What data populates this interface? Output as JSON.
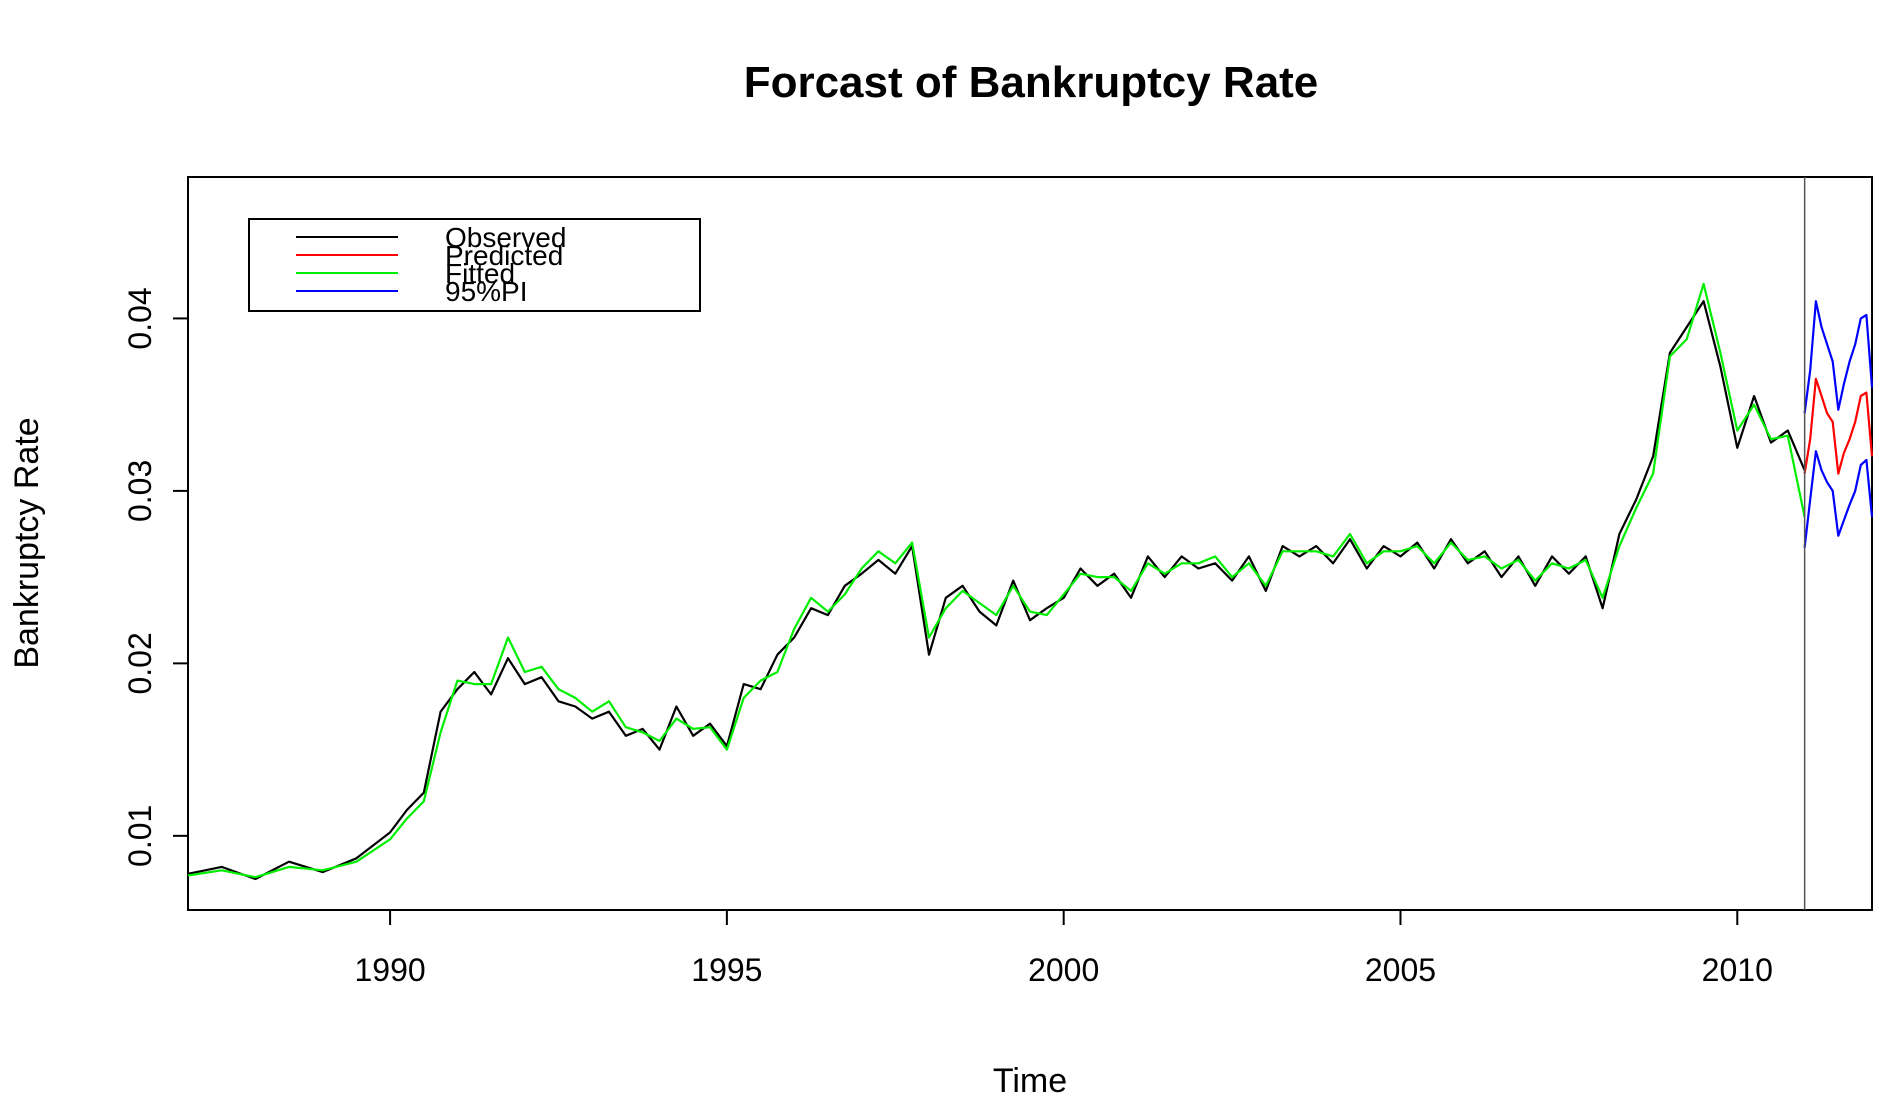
{
  "chart_data": {
    "type": "line",
    "title": "Forcast of Bankruptcy Rate",
    "xlabel": "Time",
    "ylabel": "Bankruptcy Rate",
    "xlim": [
      1987.0,
      2012.0
    ],
    "ylim": [
      0.0057,
      0.0482
    ],
    "x_ticks": [
      1990,
      1995,
      2000,
      2005,
      2010
    ],
    "x_tick_labels": [
      "1990",
      "1995",
      "2000",
      "2005",
      "2010"
    ],
    "y_ticks": [
      0.01,
      0.02,
      0.03,
      0.04
    ],
    "y_tick_labels": [
      "0.01",
      "0.02",
      "0.03",
      "0.04"
    ],
    "vline_x": 2011.0,
    "grid": false,
    "legend_position": "top-left",
    "legend": [
      {
        "label": "Observed",
        "color": "#000000"
      },
      {
        "label": "Predicted",
        "color": "#ff0000"
      },
      {
        "label": "Fitted",
        "color": "#00ee00"
      },
      {
        "label": "95%PI",
        "color": "#0000ff"
      }
    ],
    "series": [
      {
        "name": "Observed",
        "color": "#000000",
        "x": [
          1987.0,
          1987.5,
          1988.0,
          1988.5,
          1989.0,
          1989.5,
          1990.0,
          1990.25,
          1990.5,
          1990.75,
          1991.0,
          1991.25,
          1991.5,
          1991.75,
          1992.0,
          1992.25,
          1992.5,
          1992.75,
          1993.0,
          1993.25,
          1993.5,
          1993.75,
          1994.0,
          1994.25,
          1994.5,
          1994.75,
          1995.0,
          1995.25,
          1995.5,
          1995.75,
          1996.0,
          1996.25,
          1996.5,
          1996.75,
          1997.0,
          1997.25,
          1997.5,
          1997.75,
          1998.0,
          1998.25,
          1998.5,
          1998.75,
          1999.0,
          1999.25,
          1999.5,
          1999.75,
          2000.0,
          2000.25,
          2000.5,
          2000.75,
          2001.0,
          2001.25,
          2001.5,
          2001.75,
          2002.0,
          2002.25,
          2002.5,
          2002.75,
          2003.0,
          2003.25,
          2003.5,
          2003.75,
          2004.0,
          2004.25,
          2004.5,
          2004.75,
          2005.0,
          2005.25,
          2005.5,
          2005.75,
          2006.0,
          2006.25,
          2006.5,
          2006.75,
          2007.0,
          2007.25,
          2007.5,
          2007.75,
          2008.0,
          2008.25,
          2008.5,
          2008.75,
          2009.0,
          2009.25,
          2009.5,
          2009.75,
          2010.0,
          2010.25,
          2010.5,
          2010.75,
          2011.0
        ],
        "values": [
          0.0078,
          0.0082,
          0.0075,
          0.0085,
          0.0079,
          0.0087,
          0.0102,
          0.0115,
          0.0125,
          0.0172,
          0.0185,
          0.0195,
          0.0182,
          0.0203,
          0.0188,
          0.0192,
          0.0178,
          0.0175,
          0.0168,
          0.0172,
          0.0158,
          0.0162,
          0.015,
          0.0175,
          0.0158,
          0.0165,
          0.0152,
          0.0188,
          0.0185,
          0.0205,
          0.0215,
          0.0232,
          0.0228,
          0.0245,
          0.0252,
          0.026,
          0.0252,
          0.0268,
          0.0205,
          0.0238,
          0.0245,
          0.023,
          0.0222,
          0.0248,
          0.0225,
          0.0232,
          0.0238,
          0.0255,
          0.0245,
          0.0252,
          0.0238,
          0.0262,
          0.025,
          0.0262,
          0.0255,
          0.0258,
          0.0248,
          0.0262,
          0.0242,
          0.0268,
          0.0262,
          0.0268,
          0.0258,
          0.0272,
          0.0255,
          0.0268,
          0.0262,
          0.027,
          0.0255,
          0.0272,
          0.0258,
          0.0265,
          0.025,
          0.0262,
          0.0245,
          0.0262,
          0.0252,
          0.0262,
          0.0232,
          0.0275,
          0.0295,
          0.032,
          0.038,
          0.0395,
          0.041,
          0.0372,
          0.0325,
          0.0355,
          0.0328,
          0.0335,
          0.0312
        ]
      },
      {
        "name": "Fitted",
        "color": "#00ee00",
        "x": [
          1987.0,
          1987.5,
          1988.0,
          1988.5,
          1989.0,
          1989.5,
          1990.0,
          1990.25,
          1990.5,
          1990.75,
          1991.0,
          1991.25,
          1991.5,
          1991.75,
          1992.0,
          1992.25,
          1992.5,
          1992.75,
          1993.0,
          1993.25,
          1993.5,
          1993.75,
          1994.0,
          1994.25,
          1994.5,
          1994.75,
          1995.0,
          1995.25,
          1995.5,
          1995.75,
          1996.0,
          1996.25,
          1996.5,
          1996.75,
          1997.0,
          1997.25,
          1997.5,
          1997.75,
          1998.0,
          1998.25,
          1998.5,
          1998.75,
          1999.0,
          1999.25,
          1999.5,
          1999.75,
          2000.0,
          2000.25,
          2000.5,
          2000.75,
          2001.0,
          2001.25,
          2001.5,
          2001.75,
          2002.0,
          2002.25,
          2002.5,
          2002.75,
          2003.0,
          2003.25,
          2003.5,
          2003.75,
          2004.0,
          2004.25,
          2004.5,
          2004.75,
          2005.0,
          2005.25,
          2005.5,
          2005.75,
          2006.0,
          2006.25,
          2006.5,
          2006.75,
          2007.0,
          2007.25,
          2007.5,
          2007.75,
          2008.0,
          2008.25,
          2008.5,
          2008.75,
          2009.0,
          2009.25,
          2009.5,
          2009.75,
          2010.0,
          2010.25,
          2010.5,
          2010.75,
          2011.0
        ],
        "values": [
          0.0077,
          0.008,
          0.0076,
          0.0082,
          0.008,
          0.0085,
          0.0098,
          0.011,
          0.012,
          0.016,
          0.019,
          0.0188,
          0.0188,
          0.0215,
          0.0195,
          0.0198,
          0.0185,
          0.018,
          0.0172,
          0.0178,
          0.0163,
          0.016,
          0.0155,
          0.0168,
          0.0162,
          0.0163,
          0.015,
          0.018,
          0.019,
          0.0195,
          0.022,
          0.0238,
          0.023,
          0.024,
          0.0255,
          0.0265,
          0.0258,
          0.027,
          0.0215,
          0.0232,
          0.0242,
          0.0235,
          0.0228,
          0.0245,
          0.023,
          0.0228,
          0.024,
          0.0252,
          0.025,
          0.025,
          0.0242,
          0.0258,
          0.0252,
          0.0258,
          0.0258,
          0.0262,
          0.025,
          0.0258,
          0.0245,
          0.0265,
          0.0265,
          0.0265,
          0.0262,
          0.0275,
          0.0258,
          0.0265,
          0.0265,
          0.0268,
          0.0258,
          0.027,
          0.026,
          0.0262,
          0.0255,
          0.026,
          0.0248,
          0.0258,
          0.0255,
          0.026,
          0.0238,
          0.0268,
          0.029,
          0.031,
          0.0378,
          0.0388,
          0.042,
          0.038,
          0.0335,
          0.035,
          0.033,
          0.0332,
          0.0285
        ]
      },
      {
        "name": "Predicted",
        "color": "#ff0000",
        "x": [
          2011.0,
          2011.083,
          2011.167,
          2011.25,
          2011.333,
          2011.417,
          2011.5,
          2011.583,
          2011.667,
          2011.75,
          2011.833,
          2011.917,
          2012.0
        ],
        "values": [
          0.031,
          0.033,
          0.0365,
          0.0355,
          0.0345,
          0.034,
          0.031,
          0.0322,
          0.033,
          0.034,
          0.0355,
          0.0357,
          0.032
        ]
      },
      {
        "name": "95%PI upper",
        "color": "#0000ff",
        "x": [
          2011.0,
          2011.083,
          2011.167,
          2011.25,
          2011.333,
          2011.417,
          2011.5,
          2011.583,
          2011.667,
          2011.75,
          2011.833,
          2011.917,
          2012.0
        ],
        "values": [
          0.0345,
          0.037,
          0.041,
          0.0395,
          0.0385,
          0.0375,
          0.0347,
          0.0362,
          0.0375,
          0.0385,
          0.04,
          0.0402,
          0.036
        ]
      },
      {
        "name": "95%PI lower",
        "color": "#0000ff",
        "x": [
          2011.0,
          2011.083,
          2011.167,
          2011.25,
          2011.333,
          2011.417,
          2011.5,
          2011.583,
          2011.667,
          2011.75,
          2011.833,
          2011.917,
          2012.0
        ],
        "values": [
          0.0267,
          0.0295,
          0.0323,
          0.0312,
          0.0305,
          0.03,
          0.0274,
          0.0283,
          0.0292,
          0.03,
          0.0315,
          0.0318,
          0.0285
        ]
      }
    ]
  }
}
